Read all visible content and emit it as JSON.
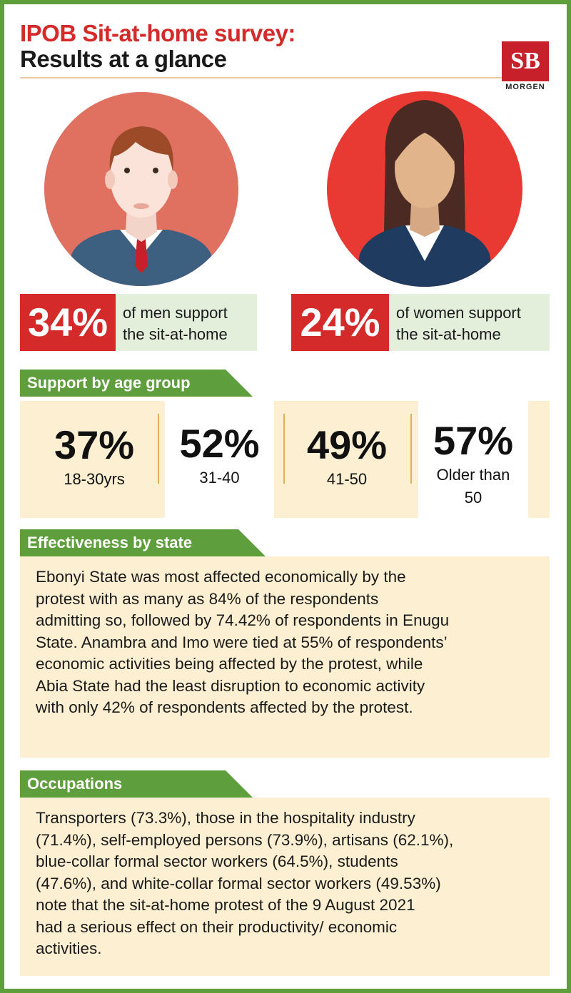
{
  "title": {
    "line1": "IPOB Sit-at-home survey:",
    "line2": "Results at a glance"
  },
  "logo": {
    "monogram": "SB",
    "name": "MORGEN"
  },
  "men": {
    "percent": "34%",
    "text_line1": "of men support",
    "text_line2": "the sit-at-home"
  },
  "women": {
    "percent": "24%",
    "text_line1": "of women support",
    "text_line2": "the sit-at-home"
  },
  "age_section": {
    "heading": "Support by age group",
    "groups": [
      {
        "percent": "37%",
        "label": "18-30yrs"
      },
      {
        "percent": "52%",
        "label": "31-40"
      },
      {
        "percent": "49%",
        "label": "41-50"
      },
      {
        "percent": "57%",
        "label_line1": "Older than",
        "label_line2": "50"
      }
    ]
  },
  "effectiveness": {
    "heading": "Effectiveness by state",
    "lines": [
      "Ebonyi State was most affected economically by the",
      "protest with as many as 84% of the respondents",
      "admitting so, followed by 74.42% of respondents in Enugu",
      "State. Anambra and Imo were tied at 55% of respondents’",
      "economic activities being affected by the protest, while",
      "Abia State had the least disruption to economic activity",
      "with only 42% of respondents affected by the protest."
    ]
  },
  "occupations": {
    "heading": "Occupations",
    "lines": [
      "Transporters (73.3%), those in the hospitality industry",
      "(71.4%), self-employed persons (73.9%), artisans (62.1%),",
      "blue-collar formal sector workers (64.5%), students",
      "(47.6%), and white-collar formal sector workers (49.53%)",
      "note that the sit-at-home protest of the 9 August 2021",
      "had a serious effect on their productivity/ economic",
      "activities."
    ]
  },
  "colors": {
    "accent_red": "#d42a2a",
    "green": "#5e9e3c",
    "cream": "#fdefd1",
    "light_green": "#e3eedb"
  },
  "icons": [
    "man-avatar-icon",
    "woman-avatar-icon",
    "sb-morgen-logo"
  ]
}
